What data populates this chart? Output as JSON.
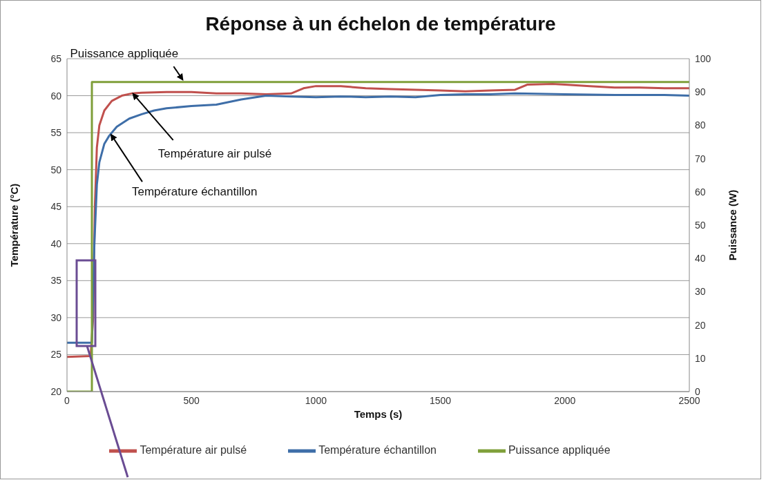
{
  "chart_data": {
    "type": "line",
    "title": "Réponse à un échelon de température",
    "xlabel": "Temps (s)",
    "ylabel": "Température (°C)",
    "y2label": "Puissance (W)",
    "xlim": [
      0,
      2500
    ],
    "xticks": [
      0,
      500,
      1000,
      1500,
      2000,
      2500
    ],
    "ylim": [
      20,
      65
    ],
    "yticks": [
      20,
      25,
      30,
      35,
      40,
      45,
      50,
      55,
      60,
      65
    ],
    "y2lim": [
      0,
      100
    ],
    "y2ticks": [
      0,
      10,
      20,
      30,
      40,
      50,
      60,
      70,
      80,
      90,
      100
    ],
    "grid": "y",
    "legend": "bottom",
    "marker": "none",
    "line_style": "solid",
    "series": [
      {
        "name": "Température air pulsé",
        "color": "#c0504d",
        "x": [
          0,
          95,
          105,
          112,
          120,
          130,
          150,
          180,
          220,
          260,
          300,
          400,
          500,
          600,
          700,
          800,
          900,
          950,
          1000,
          1100,
          1200,
          1300,
          1400,
          1500,
          1600,
          1700,
          1800,
          1850,
          1950,
          2000,
          2100,
          2200,
          2300,
          2400,
          2500
        ],
        "values": [
          24.7,
          24.8,
          30,
          45,
          53,
          56,
          58,
          59.3,
          60,
          60.3,
          60.4,
          60.5,
          60.5,
          60.3,
          60.3,
          60.2,
          60.3,
          61,
          61.3,
          61.3,
          61,
          60.9,
          60.8,
          60.7,
          60.6,
          60.7,
          60.8,
          61.5,
          61.6,
          61.5,
          61.3,
          61.1,
          61.1,
          61,
          61
        ]
      },
      {
        "name": "Température échantillon",
        "color": "#3e6ea8",
        "x": [
          0,
          100,
          110,
          120,
          130,
          150,
          170,
          200,
          250,
          300,
          350,
          400,
          500,
          600,
          700,
          800,
          900,
          1000,
          1100,
          1200,
          1300,
          1400,
          1500,
          1600,
          1700,
          1800,
          2000,
          2200,
          2400,
          2500
        ],
        "values": [
          26.6,
          26.6,
          40,
          48,
          51,
          53.5,
          54.6,
          55.8,
          56.9,
          57.5,
          58,
          58.3,
          58.6,
          58.8,
          59.5,
          60,
          59.9,
          59.8,
          59.9,
          59.8,
          59.9,
          59.8,
          60.1,
          60.2,
          60.2,
          60.3,
          60.2,
          60.1,
          60.1,
          60
        ]
      },
      {
        "name": "Puissance appliquée",
        "type": "step",
        "axis": "y2",
        "color": "#7f9f3a",
        "x": [
          0,
          100,
          2500
        ],
        "values": [
          0,
          93,
          93
        ]
      }
    ],
    "annotations": [
      {
        "text": "Puissance appliquée",
        "x": 470,
        "y": 61.9
      },
      {
        "text": "Température air pulsé",
        "x": 260,
        "y": 60.3
      },
      {
        "text": "Température échantillon",
        "x": 172,
        "y": 54.6
      }
    ]
  }
}
